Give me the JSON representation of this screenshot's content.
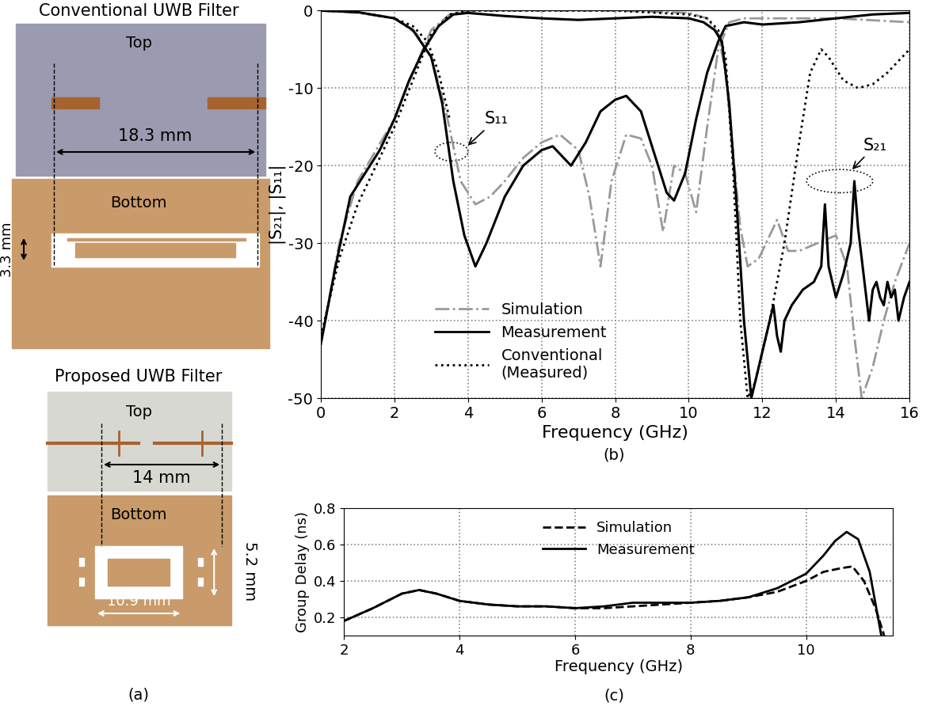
{
  "panel_a": {
    "label": "(a)",
    "conventional": {
      "title": "Conventional UWB Filter",
      "top": "Top",
      "bottom": "Bottom",
      "length": "18.3 mm",
      "width": "3.3 mm"
    },
    "proposed": {
      "title": "Proposed UWB Filter",
      "top": "Top",
      "bottom": "Bottom",
      "length": "14 mm",
      "slot_length": "10.9 mm",
      "slot_width": "5.2 mm"
    }
  },
  "chart_data": [
    {
      "type": "line",
      "panel": "(b)",
      "x_label": "Frequency (GHz)",
      "y_label": "|S₂₁|, |S₁₁|",
      "xlim": [
        0,
        16
      ],
      "xticks": [
        0,
        2,
        4,
        6,
        8,
        10,
        12,
        14,
        16
      ],
      "ylim": [
        -50,
        0
      ],
      "yticks": [
        -50,
        -40,
        -30,
        -20,
        -10,
        0
      ],
      "grid": true,
      "legend": "lower left",
      "annotations": [
        "S₁₁",
        "S₂₁"
      ],
      "series": [
        {
          "name": "Simulation",
          "color": "#999999",
          "line_style": "dashdot",
          "s21": {
            "x": [
              0,
              0.5,
              1,
              1.5,
              2,
              2.5,
              3,
              3.5,
              4,
              6,
              8,
              10,
              10.5,
              10.8,
              11,
              11.2,
              11.4,
              11.6,
              11.9,
              12.2,
              12.4,
              12.7,
              13,
              13.5,
              14,
              14.3,
              14.5,
              14.7,
              15,
              15.3,
              15.6,
              16
            ],
            "values": [
              -43,
              -30,
              -22,
              -18,
              -14,
              -8,
              -2.5,
              -0.5,
              0,
              0,
              0,
              -0.3,
              -1,
              -3,
              -8,
              -18,
              -28,
              -33,
              -32,
              -29,
              -27,
              -31,
              -31,
              -30,
              -29,
              -33,
              -42,
              -50,
              -46,
              -40,
              -35,
              -30
            ]
          },
          "s11": {
            "x": [
              0,
              1,
              2,
              2.6,
              3,
              3.4,
              3.8,
              4.2,
              4.6,
              5,
              5.5,
              6,
              6.5,
              7,
              7.3,
              7.6,
              7.9,
              8.3,
              8.7,
              9,
              9.3,
              9.6,
              9.9,
              10.2,
              10.5,
              10.8,
              11.1,
              11.5,
              12,
              14,
              16
            ],
            "values": [
              0,
              -0.3,
              -1,
              -3,
              -6,
              -13,
              -22,
              -25,
              -24,
              -22,
              -19,
              -17,
              -16,
              -18,
              -24,
              -33,
              -22,
              -16,
              -16.5,
              -20,
              -28.5,
              -20,
              -21,
              -26,
              -15,
              -5,
              -1.5,
              -1,
              -1,
              -1,
              -1.5
            ]
          }
        },
        {
          "name": "Measurement",
          "color": "#000000",
          "line_style": "solid",
          "s21": {
            "x": [
              0,
              0.4,
              0.8,
              1.2,
              1.6,
              2.0,
              2.4,
              2.8,
              3.2,
              3.6,
              4,
              5,
              6,
              7,
              8,
              9,
              10,
              10.4,
              10.7,
              10.9,
              11.1,
              11.3,
              11.5,
              11.7,
              11.9,
              12.1,
              12.3,
              12.4,
              12.5,
              12.6,
              12.8,
              13.1,
              13.4,
              13.6,
              13.7,
              13.8,
              14.0,
              14.2,
              14.4,
              14.5,
              14.6,
              14.8,
              14.9,
              15.0,
              15.1,
              15.2,
              15.3,
              15.4,
              15.5,
              15.6,
              15.7,
              15.85,
              16
            ],
            "values": [
              -43,
              -33,
              -24,
              -21,
              -18,
              -14,
              -9,
              -5,
              -2,
              -0.5,
              -0.3,
              -0.7,
              -1,
              -1.2,
              -1,
              -0.8,
              -1,
              -1.5,
              -2.5,
              -4,
              -12,
              -25,
              -40,
              -50,
              -46,
              -42,
              -38,
              -42,
              -44,
              -40,
              -38,
              -36,
              -35,
              -33,
              -25,
              -33,
              -37,
              -34,
              -30,
              -22,
              -28,
              -36,
              -40,
              -36,
              -35,
              -37,
              -38,
              -35,
              -37,
              -36,
              -40,
              -37,
              -35
            ]
          },
          "s11": {
            "x": [
              0,
              1,
              2,
              2.5,
              3,
              3.3,
              3.6,
              3.9,
              4.2,
              4.5,
              5,
              5.5,
              6,
              6.3,
              6.8,
              7.2,
              7.6,
              8,
              8.3,
              8.7,
              9.1,
              9.4,
              9.6,
              9.9,
              10.2,
              10.5,
              10.8,
              11,
              11.5,
              12,
              13,
              14,
              15,
              16
            ],
            "values": [
              0,
              -0.2,
              -1,
              -2.5,
              -6,
              -12,
              -22,
              -29,
              -33,
              -30,
              -24,
              -20,
              -18,
              -17.5,
              -20,
              -17,
              -13,
              -11.5,
              -11,
              -13,
              -19,
              -23.5,
              -24.5,
              -21,
              -14,
              -8,
              -4,
              -2,
              -1.5,
              -1.8,
              -1.5,
              -1,
              -0.5,
              -0.3
            ]
          }
        },
        {
          "name": "Conventional\n(Measured)",
          "color": "#000000",
          "line_style": "dotted",
          "s21": {
            "x": [
              0,
              0.5,
              1,
              1.5,
              2,
              2.5,
              3,
              3.5,
              4,
              6,
              8,
              10,
              10.5,
              10.8,
              11,
              11.2,
              11.4,
              11.6,
              11.8,
              12.2,
              12.6,
              13,
              13.3,
              13.6,
              13.8,
              14.2,
              14.6,
              15,
              15.4,
              16
            ],
            "values": [
              -42,
              -32,
              -25,
              -20,
              -15,
              -9,
              -3,
              -0.5,
              0,
              0,
              0,
              -0.5,
              -1,
              -2.5,
              -6,
              -20,
              -40,
              -50,
              -48,
              -40,
              -30,
              -17,
              -8,
              -5,
              -6,
              -9,
              -10,
              -9.5,
              -8,
              -5
            ]
          },
          "s11": {
            "x": [
              0,
              1,
              2,
              2.5,
              2.9,
              3.2,
              3.5
            ],
            "values": [
              0,
              -0.2,
              -1,
              -2,
              -4,
              -8,
              -14
            ]
          }
        }
      ]
    },
    {
      "type": "line",
      "panel": "(c)",
      "x_label": "Frequency (GHz)",
      "y_label": "Group Delay (ns)",
      "xlim": [
        2,
        11.5
      ],
      "xticks": [
        2,
        4,
        6,
        8,
        10
      ],
      "ylim": [
        0.1,
        0.8
      ],
      "yticks": [
        0.2,
        0.4,
        0.6,
        0.8
      ],
      "grid": true,
      "legend": "upper center",
      "series": [
        {
          "name": "Simulation",
          "color": "#000000",
          "line_style": "dashed",
          "x": [
            2,
            2.5,
            3,
            3.3,
            3.6,
            4,
            4.5,
            5,
            5.5,
            6,
            6.5,
            7,
            7.5,
            8,
            8.5,
            9,
            9.5,
            10,
            10.3,
            10.6,
            10.8,
            11,
            11.2,
            11.35
          ],
          "values": [
            0.18,
            0.25,
            0.33,
            0.35,
            0.33,
            0.29,
            0.27,
            0.26,
            0.26,
            0.25,
            0.25,
            0.26,
            0.27,
            0.28,
            0.29,
            0.31,
            0.34,
            0.4,
            0.45,
            0.47,
            0.48,
            0.4,
            0.25,
            0.1
          ]
        },
        {
          "name": "Measurement",
          "color": "#000000",
          "line_style": "solid",
          "x": [
            2,
            2.5,
            3,
            3.3,
            3.6,
            4,
            4.5,
            5,
            5.5,
            6,
            6.5,
            7,
            7.5,
            8,
            8.5,
            9,
            9.5,
            10,
            10.3,
            10.5,
            10.7,
            10.9,
            11.1,
            11.3
          ],
          "values": [
            0.18,
            0.25,
            0.33,
            0.35,
            0.33,
            0.29,
            0.27,
            0.26,
            0.26,
            0.25,
            0.26,
            0.28,
            0.28,
            0.28,
            0.29,
            0.31,
            0.36,
            0.44,
            0.54,
            0.62,
            0.67,
            0.63,
            0.45,
            0.1
          ]
        }
      ]
    }
  ]
}
